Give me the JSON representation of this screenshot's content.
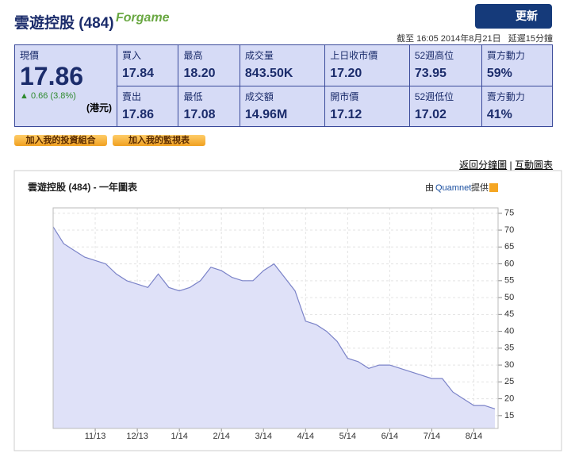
{
  "header": {
    "title": "雲遊控股 (484)",
    "logo": "Forgame",
    "refresh_button": "更新",
    "timestamp": "截至 16:05 2014年8月21日   延遲15分鐘"
  },
  "quote": {
    "last_label": "現價",
    "last_value": "17.86",
    "change": "0.66 (3.8%)",
    "currency": "(港元)",
    "cells": [
      [
        {
          "label": "買入",
          "value": "17.84"
        },
        {
          "label": "最高",
          "value": "18.20"
        },
        {
          "label": "成交量",
          "value": "843.50K"
        },
        {
          "label": "上日收市價",
          "value": "17.20"
        },
        {
          "label": "52週高位",
          "value": "73.95"
        },
        {
          "label": "買方動力",
          "value": "59%"
        }
      ],
      [
        {
          "label": "賣出",
          "value": "17.86"
        },
        {
          "label": "最低",
          "value": "17.08"
        },
        {
          "label": "成交額",
          "value": "14.96M"
        },
        {
          "label": "開市價",
          "value": "17.12"
        },
        {
          "label": "52週低位",
          "value": "17.02"
        },
        {
          "label": "賣方動力",
          "value": "41%"
        }
      ]
    ]
  },
  "actions": [
    "加入我的投資組合",
    "加入我的監視表"
  ],
  "links": [
    "返回分鐘圖",
    "互動圖表"
  ],
  "chart_data": {
    "type": "area",
    "title": "雲遊控股  (484) - 一年圖表",
    "credit": {
      "prefix": "由",
      "source": "Quamnet",
      "suffix": "提供"
    },
    "categories": [
      null,
      null,
      null,
      null,
      "11/13",
      null,
      null,
      null,
      "12/13",
      null,
      null,
      null,
      "1/14",
      null,
      null,
      null,
      "2/14",
      null,
      null,
      null,
      "3/14",
      null,
      null,
      null,
      "4/14",
      null,
      null,
      null,
      "5/14",
      null,
      null,
      null,
      "6/14",
      null,
      null,
      null,
      "7/14",
      null,
      null,
      null,
      "8/14",
      null,
      null
    ],
    "values": [
      71,
      66,
      64,
      62,
      61,
      60,
      57,
      55,
      54,
      53,
      57,
      53,
      52,
      53,
      55,
      59,
      58,
      56,
      55,
      55,
      58,
      60,
      56,
      52,
      43,
      42,
      40,
      37,
      32,
      31,
      29,
      30,
      30,
      29,
      28,
      27,
      26,
      26,
      22,
      20,
      18,
      18,
      17
    ],
    "ylim": [
      11.2,
      76.6
    ],
    "yticks": [
      15,
      20,
      25,
      30,
      35,
      40,
      45,
      50,
      55,
      60,
      65,
      70,
      75
    ],
    "grid": true,
    "color": "#dfe1f8",
    "line_color": "#7b83c8"
  }
}
